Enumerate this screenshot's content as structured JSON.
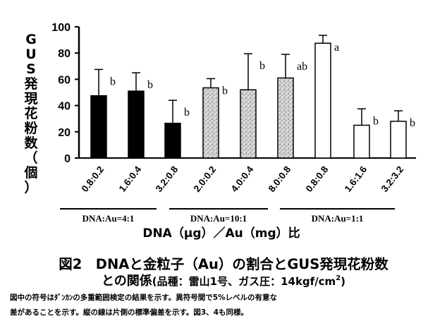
{
  "chart_data": {
    "type": "bar",
    "ylabel_chars": [
      "G",
      "U",
      "S",
      "発",
      "現",
      "花",
      "粉",
      "数",
      "（",
      "個",
      "）"
    ],
    "ylim": [
      0,
      100
    ],
    "yticks": [
      0,
      20,
      40,
      60,
      80,
      100
    ],
    "categories": [
      "0.8:0.2",
      "1.6:0.4",
      "3.2:0.8",
      "2.0:0.2",
      "4.0:0.4",
      "8.0:0.8",
      "0.8:0.8",
      "1.6:1.6",
      "3.2:3.2"
    ],
    "values": [
      47.5,
      51,
      26.5,
      53.5,
      52,
      61,
      87.5,
      25,
      28
    ],
    "error_plus": [
      20,
      14,
      17.5,
      7,
      27.5,
      18,
      6,
      12.5,
      8
    ],
    "significance": [
      "b",
      "b",
      "b",
      "b",
      "b",
      "ab",
      "a",
      "b",
      "b"
    ],
    "groups": [
      {
        "label": "DNA:Au=4:1",
        "members": [
          0,
          1,
          2
        ],
        "fill": "black"
      },
      {
        "label": "DNA:Au=10:1",
        "members": [
          3,
          4,
          5
        ],
        "fill": "stipple"
      },
      {
        "label": "DNA:Au=1:1",
        "members": [
          6,
          7,
          8
        ],
        "fill": "white"
      }
    ],
    "xlabel": "DNA（μg）／Au（mg）比"
  },
  "caption": {
    "line1": "図2　DNAと金粒子（Au）の割合とGUS発現花粉数",
    "line2_main": "との関係",
    "line2_sub": "(品種：雷山1号、ガス圧：14kgf/cm",
    "line2_sup": "2",
    "line2_end": ")"
  },
  "notes": {
    "line1": "図中の符号はﾀﾞﾝｶﾝの多重範囲検定の結果を示す。異符号間で5%レベルの有意な",
    "line2": "差があることを示す。縦の線は片側の標準偏差を示す。図3、4も同様。"
  },
  "colors": {
    "ink": "#000000",
    "paper": "#ffffff",
    "stipple_dot": "#555555"
  }
}
